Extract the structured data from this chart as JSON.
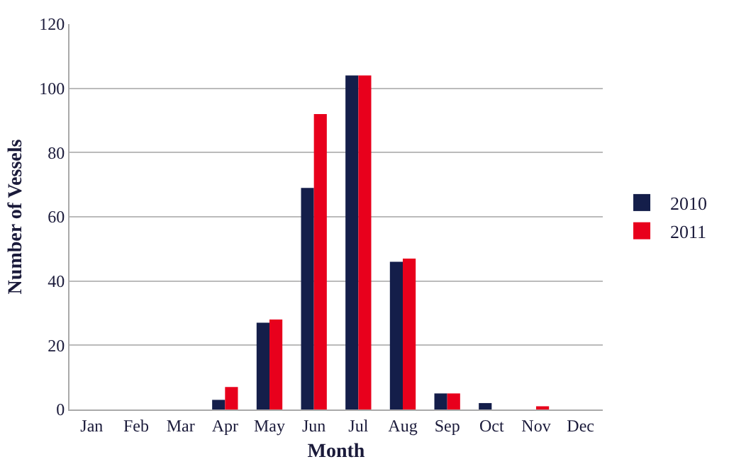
{
  "chart_data": {
    "type": "bar",
    "xlabel": "Month",
    "ylabel": "Number of Vessels",
    "categories": [
      "Jan",
      "Feb",
      "Mar",
      "Apr",
      "May",
      "Jun",
      "Jul",
      "Aug",
      "Sep",
      "Oct",
      "Nov",
      "Dec"
    ],
    "series": [
      {
        "name": "2010",
        "color": "#141e4a",
        "values": [
          0,
          0,
          0,
          3,
          27,
          69,
          104,
          46,
          5,
          2,
          0,
          0
        ]
      },
      {
        "name": "2011",
        "color": "#e8001c",
        "values": [
          0,
          0,
          0,
          7,
          28,
          92,
          104,
          47,
          5,
          0,
          1,
          0
        ]
      }
    ],
    "ylim": [
      0,
      120
    ],
    "yticks": [
      0,
      20,
      40,
      60,
      80,
      100,
      120
    ],
    "grid": "y",
    "legend": "right"
  }
}
